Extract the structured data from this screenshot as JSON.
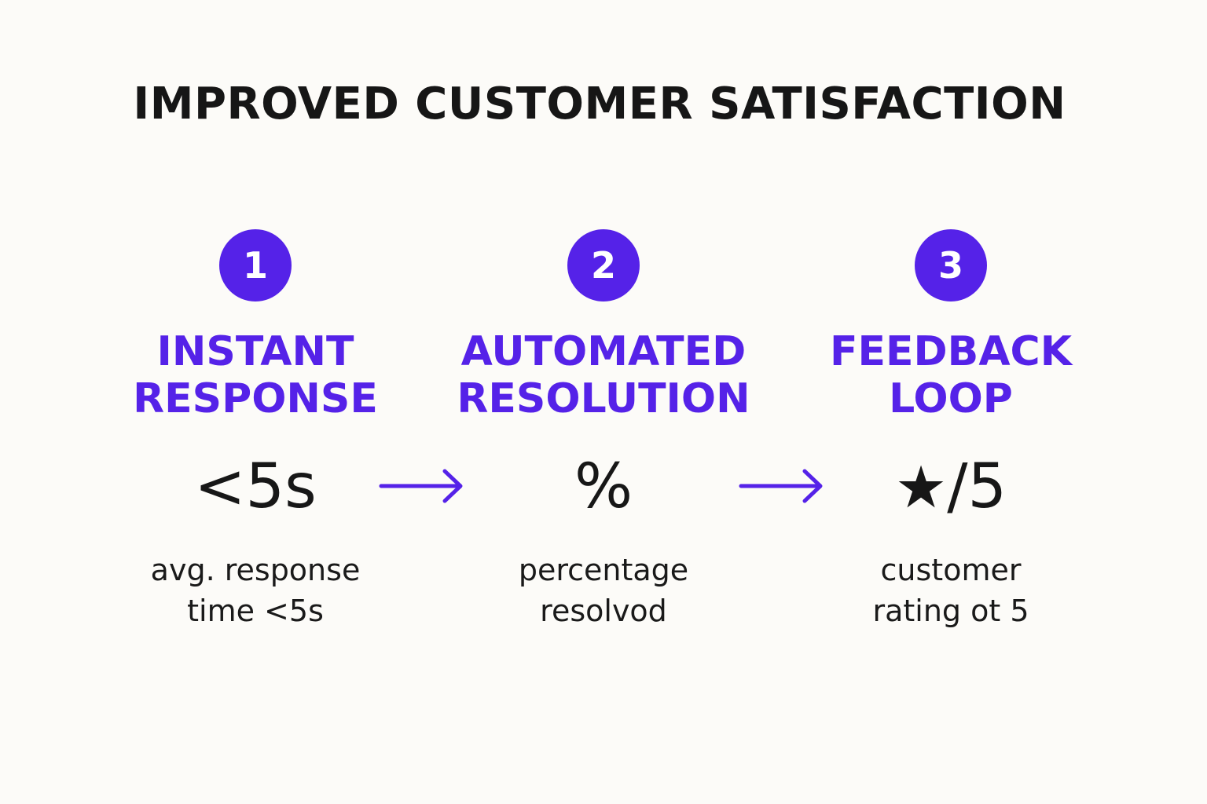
{
  "title": "IMPROVED CUSTOMER SATISFACTION",
  "colors": {
    "accent": "#5522e8",
    "text": "#161616",
    "background": "#fcfbf8"
  },
  "steps": [
    {
      "number": "1",
      "heading_line1": "INSTANT",
      "heading_line2": "RESPONSE",
      "metric": "<5s",
      "desc_line1": "avg. response",
      "desc_line2": "time <5s"
    },
    {
      "number": "2",
      "heading_line1": "AUTOMATED",
      "heading_line2": "RESOLUTION",
      "metric": "%",
      "desc_line1": "percentage",
      "desc_line2": "resolvod"
    },
    {
      "number": "3",
      "heading_line1": "FEEDBACK",
      "heading_line2": "LOOP",
      "metric_icon": "star-icon",
      "metric_star": "★",
      "metric_suffix": "/5",
      "desc_line1": "customer",
      "desc_line2": "rating ot 5"
    }
  ],
  "arrows": [
    "arrow-right-icon",
    "arrow-right-icon"
  ]
}
